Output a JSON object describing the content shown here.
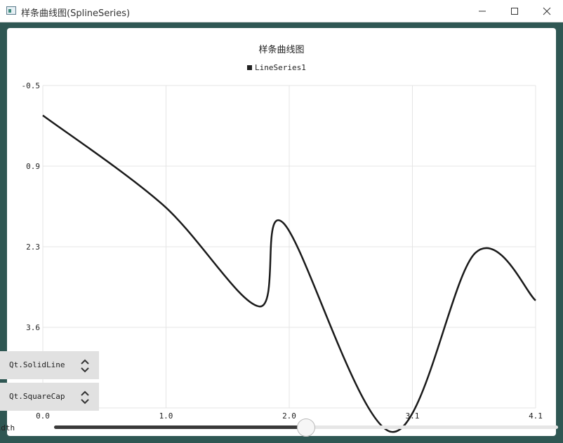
{
  "window": {
    "title": "样条曲线图(SplineSeries)",
    "controls": [
      "minimize-icon",
      "maximize-icon",
      "close-icon"
    ]
  },
  "chart_data": {
    "type": "line",
    "title": "样条曲线图",
    "xlabel": "",
    "ylabel": "",
    "xlim": [
      0.0,
      4.1
    ],
    "ylim": [
      -0.5,
      4.9
    ],
    "y_reversed": true,
    "grid": true,
    "legend_position": "top-center",
    "x_ticks": [
      "0.0",
      "1.0",
      "2.0",
      "3.1",
      "4.1"
    ],
    "y_ticks": [
      "-0.5",
      "0.9",
      "2.3",
      "3.6"
    ],
    "series": [
      {
        "name": "LineSeries1",
        "color": "#1a1a1a",
        "x": [
          0.0,
          1.0,
          1.8,
          2.0,
          2.9,
          3.6,
          4.1
        ],
        "y": [
          0.0,
          1.5,
          3.2,
          1.8,
          5.3,
          2.3,
          3.1
        ]
      }
    ]
  },
  "controls": {
    "pen_style": "Qt.SolidLine",
    "cap_style": "Qt.SquareCap",
    "width_label": "Width",
    "width_value_fraction": 0.5
  },
  "colors": {
    "background": "#2f5753",
    "line": "#1a1a1a",
    "grid": "#e4e4e4"
  }
}
